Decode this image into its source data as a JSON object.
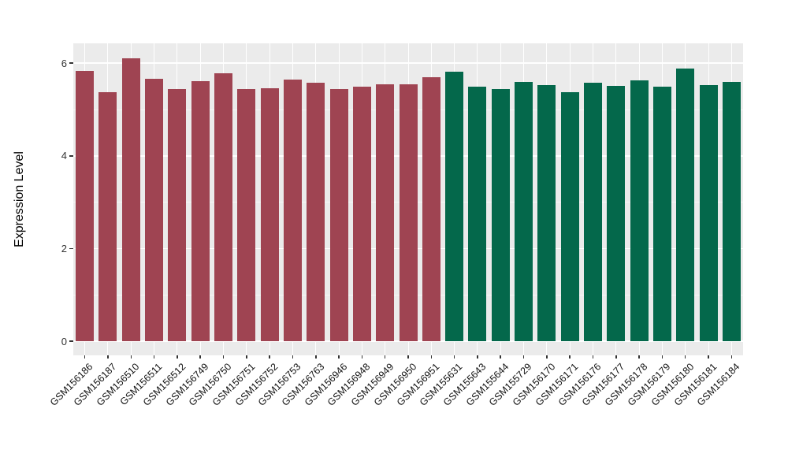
{
  "chart_data": {
    "type": "bar",
    "title": "",
    "xlabel": "",
    "ylabel": "Expression Level",
    "y_ticks": [
      0,
      2,
      4,
      6
    ],
    "ylim": [
      -0.31,
      6.43
    ],
    "grid": true,
    "legend_position": "none",
    "panel_bg_color": "#EBEBEB",
    "grid_color": "#FFFFFF",
    "tick_color": "#333333",
    "group_colors": {
      "group1": "#9F4452",
      "group2": "#04684B"
    },
    "bars": [
      {
        "label": "GSM156186",
        "value": 5.83,
        "group": "group1"
      },
      {
        "label": "GSM156187",
        "value": 5.37,
        "group": "group1"
      },
      {
        "label": "GSM156510",
        "value": 6.11,
        "group": "group1"
      },
      {
        "label": "GSM156511",
        "value": 5.67,
        "group": "group1"
      },
      {
        "label": "GSM156512",
        "value": 5.45,
        "group": "group1"
      },
      {
        "label": "GSM156749",
        "value": 5.62,
        "group": "group1"
      },
      {
        "label": "GSM156750",
        "value": 5.79,
        "group": "group1"
      },
      {
        "label": "GSM156751",
        "value": 5.44,
        "group": "group1"
      },
      {
        "label": "GSM156752",
        "value": 5.46,
        "group": "group1"
      },
      {
        "label": "GSM156753",
        "value": 5.64,
        "group": "group1"
      },
      {
        "label": "GSM156763",
        "value": 5.57,
        "group": "group1"
      },
      {
        "label": "GSM156946",
        "value": 5.44,
        "group": "group1"
      },
      {
        "label": "GSM156948",
        "value": 5.49,
        "group": "group1"
      },
      {
        "label": "GSM156949",
        "value": 5.54,
        "group": "group1"
      },
      {
        "label": "GSM156950",
        "value": 5.55,
        "group": "group1"
      },
      {
        "label": "GSM156951",
        "value": 5.7,
        "group": "group1"
      },
      {
        "label": "GSM155631",
        "value": 5.81,
        "group": "group2"
      },
      {
        "label": "GSM155643",
        "value": 5.5,
        "group": "group2"
      },
      {
        "label": "GSM155644",
        "value": 5.45,
        "group": "group2"
      },
      {
        "label": "GSM155729",
        "value": 5.6,
        "group": "group2"
      },
      {
        "label": "GSM156170",
        "value": 5.52,
        "group": "group2"
      },
      {
        "label": "GSM156171",
        "value": 5.37,
        "group": "group2"
      },
      {
        "label": "GSM156176",
        "value": 5.57,
        "group": "group2"
      },
      {
        "label": "GSM156177",
        "value": 5.51,
        "group": "group2"
      },
      {
        "label": "GSM156178",
        "value": 5.63,
        "group": "group2"
      },
      {
        "label": "GSM156179",
        "value": 5.5,
        "group": "group2"
      },
      {
        "label": "GSM156180",
        "value": 5.88,
        "group": "group2"
      },
      {
        "label": "GSM156181",
        "value": 5.52,
        "group": "group2"
      },
      {
        "label": "GSM156184",
        "value": 5.6,
        "group": "group2"
      }
    ]
  }
}
